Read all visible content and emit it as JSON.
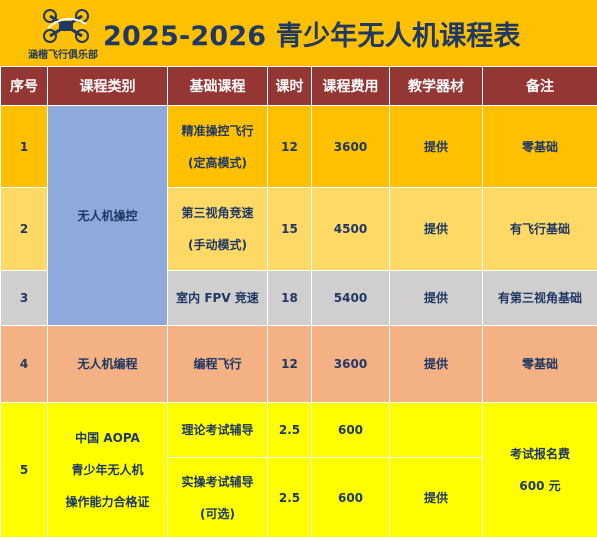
{
  "logo": {
    "text": "涵楷飞行俱乐部",
    "icon": "drone-logo-icon",
    "accent": "#1F3864"
  },
  "title": "2025-2026 青少年无人机课程表",
  "headers": [
    "序号",
    "课程类别",
    "基础课程",
    "课时",
    "课程费用",
    "教学器材",
    "备注"
  ],
  "rows": [
    {
      "no": "1",
      "category": "无人机操控",
      "course_l1": "精准操控飞行",
      "course_l2": "(定高模式)",
      "hours": "12",
      "fee": "3600",
      "equipment": "提供",
      "note": "零基础"
    },
    {
      "no": "2",
      "course_l1": "第三视角竞速",
      "course_l2": "(手动模式)",
      "hours": "15",
      "fee": "4500",
      "equipment": "提供",
      "note": "有飞行基础"
    },
    {
      "no": "3",
      "course_l1": "室内 FPV 竞速",
      "hours": "18",
      "fee": "5400",
      "equipment": "提供",
      "note": "有第三视角基础"
    },
    {
      "no": "4",
      "category": "无人机编程",
      "course_l1": "编程飞行",
      "hours": "12",
      "fee": "3600",
      "equipment": "提供",
      "note": "零基础"
    },
    {
      "no": "5",
      "category_l1": "中国 AOPA",
      "category_l2": "青少年无人机",
      "category_l3": "操作能力合格证",
      "course_l1": "理论考试辅导",
      "hours": "2.5",
      "fee": "600",
      "equipment": "",
      "note_l1": "考试报名费",
      "note_l2": "600 元"
    },
    {
      "course_l1": "实操考试辅导",
      "course_l2": "(可选)",
      "hours": "2.5",
      "fee": "600",
      "equipment": "提供"
    }
  ],
  "colors": {
    "header_bg": "#943634",
    "title_bg": "#FFC000",
    "row1": "#FFC000",
    "row2": "#FFD966",
    "row3": "#D0CECE",
    "row4": "#F4B183",
    "row5": "#FFFF00",
    "drone_category": "#8EA9DB",
    "text": "#1F3864"
  }
}
